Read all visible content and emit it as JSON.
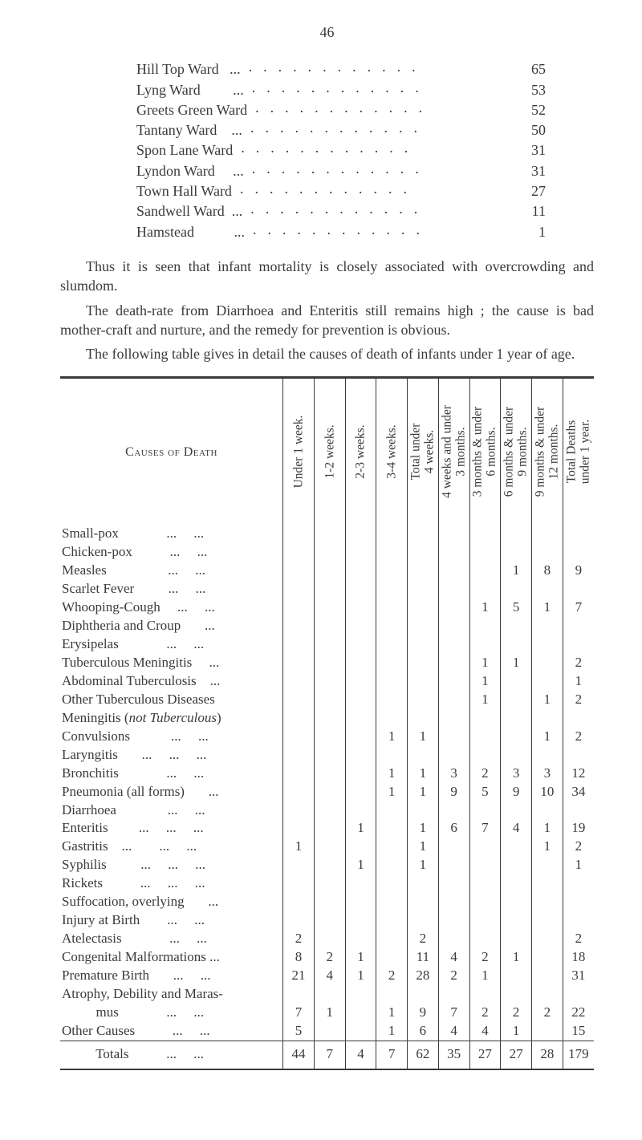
{
  "page_number": "46",
  "wards": [
    {
      "name": "Hill Top Ward   ...",
      "val": "65"
    },
    {
      "name": "Lyng Ward         ...",
      "val": "53"
    },
    {
      "name": "Greets Green Ward",
      "val": "52"
    },
    {
      "name": "Tantany Ward    ...",
      "val": "50"
    },
    {
      "name": "Spon Lane Ward",
      "val": "31"
    },
    {
      "name": "Lyndon Ward     ...",
      "val": "31"
    },
    {
      "name": "Town Hall Ward",
      "val": "27"
    },
    {
      "name": "Sandwell Ward  ...",
      "val": "11"
    },
    {
      "name": "Hamstead           ...",
      "val": "1"
    }
  ],
  "para1": "Thus it is seen that infant mortality is closely associated with overcrowding and slumdom.",
  "para2": "The death-rate from Diarrhoea and Enteritis still remains high ; the cause is bad mother-craft and nurture, and the remedy for prevention is obvious.",
  "para3": "The following table gives in detail the causes of death of infants under 1 year of age.",
  "table": {
    "col_widths": {
      "label": 258,
      "data": 36
    },
    "header_label": "Causes of Death",
    "headers": [
      "Under 1 week.",
      "1-2 weeks.",
      "2-3 weeks.",
      "3-4 weeks.",
      "Total under\n4 weeks.",
      "4 weeks and under\n3 months.",
      "3 months & under\n6 months.",
      "6 months & under\n9 months.",
      "9 months & under\n12 months.",
      "Total Deaths\nunder 1 year."
    ],
    "rows": [
      {
        "label": "Small-pox              ...     ...",
        "cells": [
          "",
          "",
          "",
          "",
          "",
          "",
          "",
          "",
          "",
          ""
        ]
      },
      {
        "label": "Chicken-pox           ...     ...",
        "cells": [
          "",
          "",
          "",
          "",
          "",
          "",
          "",
          "",
          "",
          ""
        ]
      },
      {
        "label": "Measles                  ...     ...",
        "cells": [
          "",
          "",
          "",
          "",
          "",
          "",
          "",
          "1",
          "8",
          "9"
        ]
      },
      {
        "label": "Scarlet Fever          ...     ...",
        "cells": [
          "",
          "",
          "",
          "",
          "",
          "",
          "",
          "",
          "",
          ""
        ]
      },
      {
        "label": "Whooping-Cough     ...     ...",
        "cells": [
          "",
          "",
          "",
          "",
          "",
          "",
          "1",
          "5",
          "1",
          "7"
        ]
      },
      {
        "label": "Diphtheria and Croup       ...",
        "cells": [
          "",
          "",
          "",
          "",
          "",
          "",
          "",
          "",
          "",
          ""
        ]
      },
      {
        "label": "Erysipelas              ...     ...",
        "cells": [
          "",
          "",
          "",
          "",
          "",
          "",
          "",
          "",
          "",
          ""
        ]
      },
      {
        "label": "Tuberculous Meningitis     ...",
        "cells": [
          "",
          "",
          "",
          "",
          "",
          "",
          "1",
          "1",
          "",
          "2"
        ]
      },
      {
        "label": "Abdominal Tuberculosis    ...",
        "cells": [
          "",
          "",
          "",
          "",
          "",
          "",
          "1",
          "",
          "",
          "1"
        ]
      },
      {
        "label": "Other Tuberculous Diseases",
        "cells": [
          "",
          "",
          "",
          "",
          "",
          "",
          "1",
          "",
          "1",
          "2"
        ]
      },
      {
        "label": "Meningitis (not Tuberculous)",
        "italic": true,
        "cells": [
          "",
          "",
          "",
          "",
          "",
          "",
          "",
          "",
          "",
          ""
        ]
      },
      {
        "label": "Convulsions            ...     ...",
        "cells": [
          "",
          "",
          "",
          "1",
          "1",
          "",
          "",
          "",
          "1",
          "2"
        ]
      },
      {
        "label": "Laryngitis       ...     ...     ...",
        "cells": [
          "",
          "",
          "",
          "",
          "",
          "",
          "",
          "",
          "",
          ""
        ]
      },
      {
        "label": "Bronchitis              ...     ...",
        "cells": [
          "",
          "",
          "",
          "1",
          "1",
          "3",
          "2",
          "3",
          "3",
          "12"
        ]
      },
      {
        "label": "Pneumonia (all forms)       ...",
        "cells": [
          "",
          "",
          "",
          "1",
          "1",
          "9",
          "5",
          "9",
          "10",
          "34"
        ]
      },
      {
        "label": "Diarrhoea               ...     ...",
        "cells": [
          "",
          "",
          "",
          "",
          "",
          "",
          "",
          "",
          "",
          ""
        ]
      },
      {
        "label": "Enteritis         ...     ...     ...",
        "cells": [
          "",
          "",
          "1",
          "",
          "1",
          "6",
          "7",
          "4",
          "1",
          "19"
        ]
      },
      {
        "label": "Gastritis    ...        ...     ...",
        "cells": [
          "1",
          "",
          "",
          "",
          "1",
          "",
          "",
          "",
          "1",
          "2"
        ]
      },
      {
        "label": "Syphilis          ...     ...     ...",
        "cells": [
          "",
          "",
          "1",
          "",
          "1",
          "",
          "",
          "",
          "",
          "1"
        ]
      },
      {
        "label": "Rickets           ...     ...     ...",
        "cells": [
          "",
          "",
          "",
          "",
          "",
          "",
          "",
          "",
          "",
          ""
        ]
      },
      {
        "label": "Suffocation, overlying       ...",
        "cells": [
          "",
          "",
          "",
          "",
          "",
          "",
          "",
          "",
          "",
          ""
        ]
      },
      {
        "label": "Injury at Birth        ...     ...",
        "cells": [
          "",
          "",
          "",
          "",
          "",
          "",
          "",
          "",
          "",
          ""
        ]
      },
      {
        "label": "Atelectasis              ...     ...",
        "cells": [
          "2",
          "",
          "",
          "",
          "2",
          "",
          "",
          "",
          "",
          "2"
        ]
      },
      {
        "label": "Congenital Malformations ...",
        "cells": [
          "8",
          "2",
          "1",
          "",
          "11",
          "4",
          "2",
          "1",
          "",
          "18"
        ]
      },
      {
        "label": "Premature Birth       ...     ...",
        "cells": [
          "21",
          "4",
          "1",
          "2",
          "28",
          "2",
          "1",
          "",
          "",
          "31"
        ]
      },
      {
        "label": "Atrophy, Debility and Maras-",
        "cells": [
          "",
          "",
          "",
          "",
          "",
          "",
          "",
          "",
          "",
          ""
        ]
      },
      {
        "label": "          mus              ...     ...",
        "cells": [
          "7",
          "1",
          "",
          "1",
          "9",
          "7",
          "2",
          "2",
          "2",
          "22"
        ]
      },
      {
        "label": "Other Causes           ...     ...",
        "cells": [
          "5",
          "",
          "",
          "1",
          "6",
          "4",
          "4",
          "1",
          "",
          "15"
        ]
      }
    ],
    "totals": {
      "label": "          Totals           ...     ...",
      "cells": [
        "44",
        "7",
        "4",
        "7",
        "62",
        "35",
        "27",
        "27",
        "28",
        "179"
      ]
    }
  }
}
